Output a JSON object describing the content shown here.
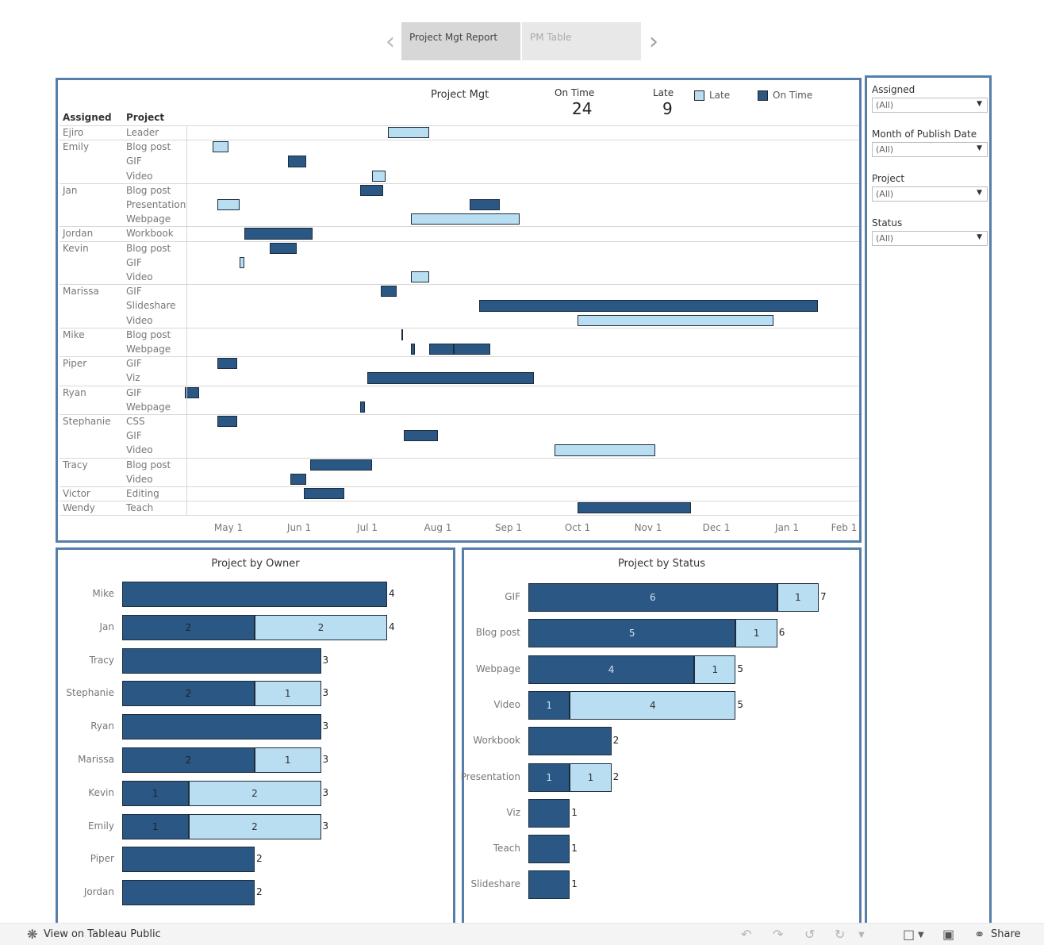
{
  "story": {
    "tabs": [
      {
        "label": "Project Mgt Report",
        "active": true
      },
      {
        "label": "PM Table",
        "active": false
      }
    ],
    "prev_icon": "chevron-left-icon",
    "next_icon": "chevron-right-icon"
  },
  "gantt": {
    "title": "Project Mgt",
    "kpis": {
      "on_time_label": "On Time",
      "on_time_value": "24",
      "late_label": "Late",
      "late_value": "9"
    },
    "legend": [
      {
        "label": "Late",
        "color": "#b9ddf1"
      },
      {
        "label": "On Time",
        "color": "#2a5783"
      }
    ],
    "col_assigned": "Assigned",
    "col_project": "Project",
    "axis_ticks": [
      "May 1",
      "Jun 1",
      "Jul 1",
      "Aug 1",
      "Sep 1",
      "Oct 1",
      "Nov 1",
      "Dec 1",
      "Jan 1",
      "Feb 1"
    ],
    "groups": [
      {
        "name": "Ejiro",
        "rows": [
          {
            "project": "Leader",
            "bars": [
              {
                "start": "2024-07-10",
                "end": "2024-07-28",
                "status": "Late"
              }
            ]
          }
        ]
      },
      {
        "name": "Emily",
        "rows": [
          {
            "project": "Blog post",
            "bars": [
              {
                "start": "2024-04-24",
                "end": "2024-05-01",
                "status": "Late"
              }
            ]
          },
          {
            "project": "GIF",
            "bars": [
              {
                "start": "2024-05-27",
                "end": "2024-06-04",
                "status": "On Time"
              }
            ]
          },
          {
            "project": "Video",
            "bars": [
              {
                "start": "2024-07-03",
                "end": "2024-07-09",
                "status": "Late"
              }
            ]
          }
        ]
      },
      {
        "name": "Jan",
        "rows": [
          {
            "project": "Blog post",
            "bars": [
              {
                "start": "2024-06-28",
                "end": "2024-07-08",
                "status": "On Time"
              }
            ]
          },
          {
            "project": "Presentation",
            "bars": [
              {
                "start": "2024-04-26",
                "end": "2024-05-06",
                "status": "Late"
              },
              {
                "start": "2024-08-15",
                "end": "2024-08-28",
                "status": "On Time"
              }
            ]
          },
          {
            "project": "Webpage",
            "bars": [
              {
                "start": "2024-07-20",
                "end": "2024-09-06",
                "status": "Late"
              }
            ]
          }
        ]
      },
      {
        "name": "Jordan",
        "rows": [
          {
            "project": "Workbook",
            "bars": [
              {
                "start": "2024-05-08",
                "end": "2024-06-07",
                "status": "On Time"
              }
            ]
          }
        ]
      },
      {
        "name": "Kevin",
        "rows": [
          {
            "project": "Blog post",
            "bars": [
              {
                "start": "2024-05-19",
                "end": "2024-05-31",
                "status": "On Time"
              }
            ]
          },
          {
            "project": "GIF",
            "bars": [
              {
                "start": "2024-05-06",
                "end": "2024-05-08",
                "status": "Late"
              }
            ]
          },
          {
            "project": "Video",
            "bars": [
              {
                "start": "2024-07-20",
                "end": "2024-07-28",
                "status": "Late"
              }
            ]
          }
        ]
      },
      {
        "name": "Marissa",
        "rows": [
          {
            "project": "GIF",
            "bars": [
              {
                "start": "2024-07-07",
                "end": "2024-07-14",
                "status": "On Time"
              }
            ]
          },
          {
            "project": "Slideshare",
            "bars": [
              {
                "start": "2024-08-19",
                "end": "2025-01-18",
                "status": "On Time"
              }
            ]
          },
          {
            "project": "Video",
            "bars": [
              {
                "start": "2024-10-01",
                "end": "2024-12-26",
                "status": "Late"
              }
            ]
          }
        ]
      },
      {
        "name": "Mike",
        "rows": [
          {
            "project": "Blog post",
            "bars": [
              {
                "start": "2024-07-16",
                "end": "2024-07-16",
                "status": "On Time"
              }
            ]
          },
          {
            "project": "Webpage",
            "bars": [
              {
                "start": "2024-07-20",
                "end": "2024-07-22",
                "status": "On Time"
              },
              {
                "start": "2024-07-28",
                "end": "2024-08-08",
                "status": "On Time"
              },
              {
                "start": "2024-08-08",
                "end": "2024-08-24",
                "status": "On Time"
              }
            ]
          }
        ]
      },
      {
        "name": "Piper",
        "rows": [
          {
            "project": "GIF",
            "bars": [
              {
                "start": "2024-04-26",
                "end": "2024-05-05",
                "status": "On Time"
              }
            ]
          },
          {
            "project": "Viz",
            "bars": [
              {
                "start": "2024-07-01",
                "end": "2024-09-12",
                "status": "On Time"
              }
            ]
          }
        ]
      },
      {
        "name": "Ryan",
        "rows": [
          {
            "project": "GIF",
            "bars": [
              {
                "start": "2024-04-12",
                "end": "2024-04-18",
                "status": "On Time"
              }
            ]
          },
          {
            "project": "Webpage",
            "bars": [
              {
                "start": "2024-06-28",
                "end": "2024-06-30",
                "status": "On Time"
              }
            ]
          }
        ]
      },
      {
        "name": "Stephanie",
        "rows": [
          {
            "project": "CSS",
            "bars": [
              {
                "start": "2024-04-26",
                "end": "2024-05-05",
                "status": "On Time"
              }
            ]
          },
          {
            "project": "GIF",
            "bars": [
              {
                "start": "2024-07-17",
                "end": "2024-08-01",
                "status": "On Time"
              }
            ]
          },
          {
            "project": "Video",
            "bars": [
              {
                "start": "2024-09-21",
                "end": "2024-11-04",
                "status": "Late"
              }
            ]
          }
        ]
      },
      {
        "name": "Tracy",
        "rows": [
          {
            "project": "Blog post",
            "bars": [
              {
                "start": "2024-06-06",
                "end": "2024-07-03",
                "status": "On Time"
              }
            ]
          },
          {
            "project": "Video",
            "bars": [
              {
                "start": "2024-05-28",
                "end": "2024-06-04",
                "status": "On Time"
              }
            ]
          }
        ]
      },
      {
        "name": "Victor",
        "rows": [
          {
            "project": "Editing",
            "bars": [
              {
                "start": "2024-06-03",
                "end": "2024-06-21",
                "status": "On Time"
              }
            ]
          }
        ]
      },
      {
        "name": "Wendy",
        "rows": [
          {
            "project": "Teach",
            "bars": [
              {
                "start": "2024-10-01",
                "end": "2024-11-20",
                "status": "On Time"
              }
            ]
          }
        ]
      }
    ]
  },
  "chart_data": [
    {
      "type": "bar",
      "title": "Project by Owner",
      "categories": [
        "Mike",
        "Jan",
        "Tracy",
        "Stephanie",
        "Ryan",
        "Marissa",
        "Kevin",
        "Emily",
        "Piper",
        "Jordan"
      ],
      "series": [
        {
          "name": "On Time",
          "values": [
            4,
            2,
            3,
            2,
            3,
            2,
            1,
            1,
            2,
            2
          ]
        },
        {
          "name": "Late",
          "values": [
            0,
            2,
            0,
            1,
            0,
            1,
            2,
            2,
            0,
            0
          ]
        }
      ],
      "labels_on_time": [
        "",
        "2",
        "",
        "2",
        "",
        "2",
        "1",
        "1",
        "",
        ""
      ],
      "labels_late": [
        "",
        "2",
        "",
        "1",
        "",
        "1",
        "2",
        "2",
        "",
        ""
      ],
      "totals": [
        "4",
        "4",
        "3",
        "3",
        "3",
        "3",
        "3",
        "3",
        "2",
        "2"
      ],
      "xlim": [
        0,
        4
      ]
    },
    {
      "type": "bar",
      "title": "Project by Status",
      "categories": [
        "GIF",
        "Blog post",
        "Webpage",
        "Video",
        "Workbook",
        "Presentation",
        "Viz",
        "Teach",
        "Slideshare"
      ],
      "series": [
        {
          "name": "On Time",
          "values": [
            6,
            5,
            4,
            1,
            2,
            1,
            1,
            1,
            1
          ]
        },
        {
          "name": "Late",
          "values": [
            1,
            1,
            1,
            4,
            0,
            1,
            0,
            0,
            0
          ]
        }
      ],
      "labels_on_time": [
        "6",
        "5",
        "4",
        "1",
        "",
        "1",
        "",
        "",
        ""
      ],
      "labels_late": [
        "1",
        "1",
        "1",
        "4",
        "",
        "1",
        "",
        "",
        ""
      ],
      "totals": [
        "7",
        "6",
        "5",
        "5",
        "2",
        "2",
        "1",
        "1",
        "1"
      ],
      "xlim": [
        0,
        7
      ]
    }
  ],
  "filters": [
    {
      "label": "Assigned",
      "value": "(All)"
    },
    {
      "label": "Month of Publish Date",
      "value": "(All)"
    },
    {
      "label": "Project",
      "value": "(All)"
    },
    {
      "label": "Status",
      "value": "(All)"
    }
  ],
  "toolbar": {
    "view_label": "View on Tableau Public",
    "share_label": "Share"
  },
  "colors": {
    "on_time": "#2a5783",
    "late": "#b9ddf1",
    "panel_border": "#557fa8"
  }
}
